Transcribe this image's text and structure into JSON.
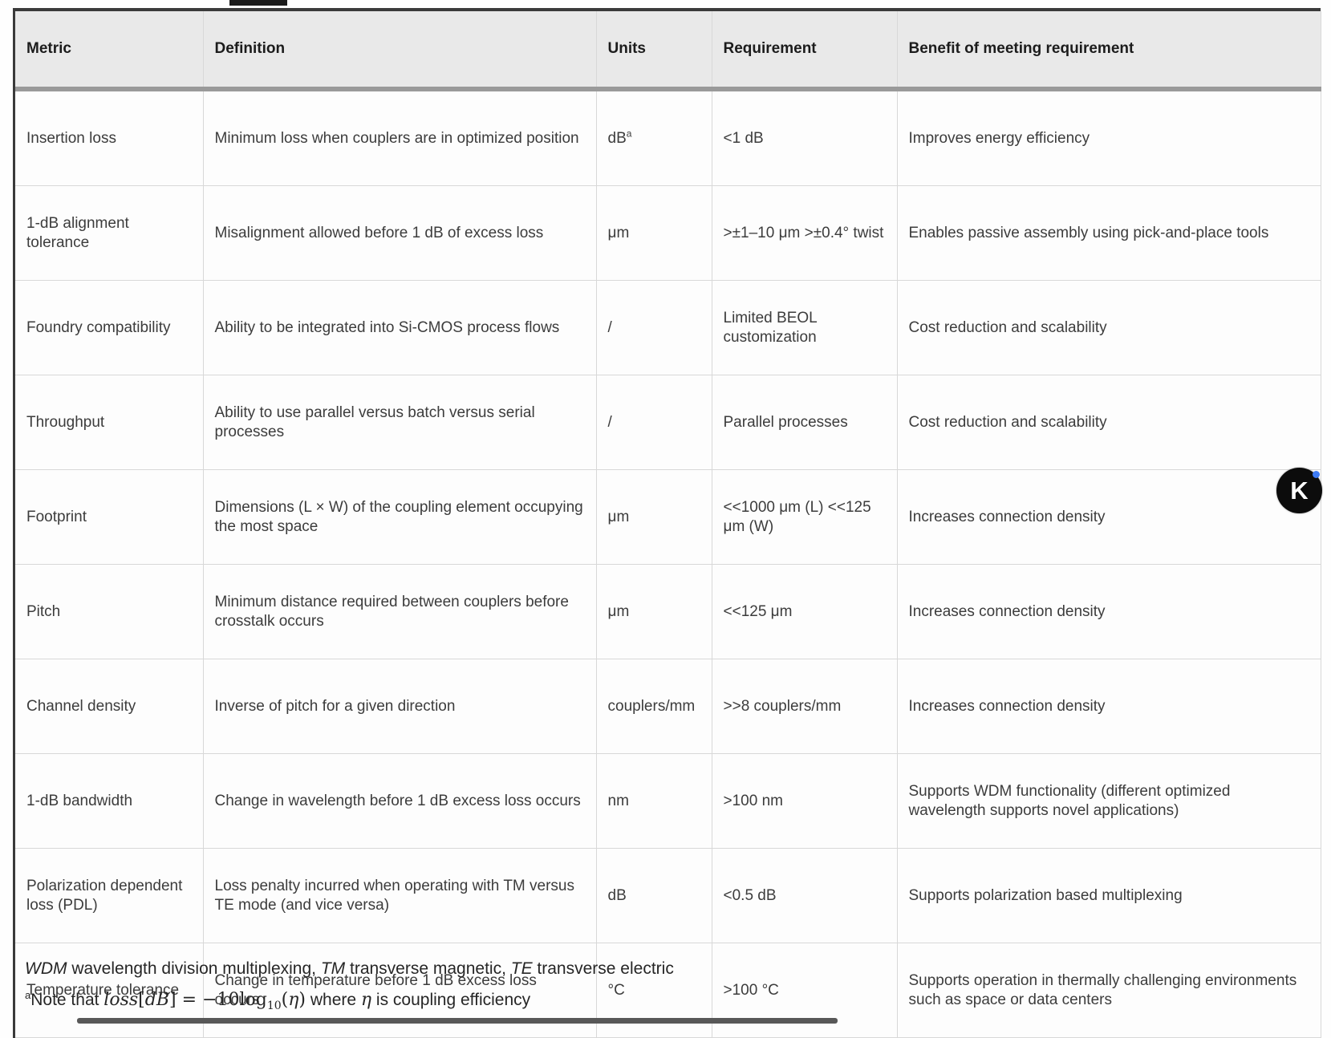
{
  "table": {
    "headers": [
      "Metric",
      "Definition",
      "Units",
      "Requirement",
      "Benefit of meeting requirement"
    ],
    "rows": [
      {
        "metric": "Insertion loss",
        "definition": "Minimum loss when couplers are in optimized position",
        "units": "dB",
        "units_sup": "a",
        "requirement": "<1 dB",
        "benefit": "Improves energy efficiency"
      },
      {
        "metric": "1-dB alignment tolerance",
        "definition": "Misalignment allowed before 1 dB of excess loss",
        "units": "μm",
        "units_sup": "",
        "requirement": ">±1–10 μm >±0.4° twist",
        "benefit": "Enables passive assembly using pick-and-place tools"
      },
      {
        "metric": "Foundry compatibility",
        "definition": "Ability to be integrated into Si-CMOS process flows",
        "units": "/",
        "units_sup": "",
        "requirement": "Limited BEOL customization",
        "benefit": "Cost reduction and scalability"
      },
      {
        "metric": "Throughput",
        "definition": "Ability to use parallel versus batch versus serial processes",
        "units": "/",
        "units_sup": "",
        "requirement": "Parallel processes",
        "benefit": "Cost reduction and scalability"
      },
      {
        "metric": "Footprint",
        "definition": "Dimensions (L × W) of the coupling element occupying the most space",
        "units": "μm",
        "units_sup": "",
        "requirement": "<<1000 μm (L) <<125 μm (W)",
        "benefit": "Increases connection density"
      },
      {
        "metric": "Pitch",
        "definition": "Minimum distance required between couplers before crosstalk occurs",
        "units": "μm",
        "units_sup": "",
        "requirement": "<<125 μm",
        "benefit": "Increases connection density"
      },
      {
        "metric": "Channel density",
        "definition": "Inverse of pitch for a given direction",
        "units": "couplers/mm",
        "units_sup": "",
        "requirement": ">>8 couplers/mm",
        "benefit": "Increases connection density"
      },
      {
        "metric": "1-dB bandwidth",
        "definition": "Change in wavelength before 1 dB excess loss occurs",
        "units": "nm",
        "units_sup": "",
        "requirement": ">100 nm",
        "benefit": "Supports WDM functionality (different optimized wavelength supports novel applications)"
      },
      {
        "metric": "Polarization dependent loss (PDL)",
        "definition": "Loss penalty incurred when operating with TM versus TE mode (and vice versa)",
        "units": "dB",
        "units_sup": "",
        "requirement": "<0.5 dB",
        "benefit": "Supports polarization based multiplexing"
      },
      {
        "metric": "Temperature tolerance",
        "definition": "Change in temperature before 1 dB excess loss occurs",
        "units": "°C",
        "units_sup": "",
        "requirement": ">100 °C",
        "benefit": "Supports operation in thermally challenging environments such as space or data centers"
      }
    ]
  },
  "footnotes": {
    "abbrev": {
      "t0": "WDM",
      "t1": " wavelength division multiplexing, ",
      "t2": "TM",
      "t3": " transverse magnetic, ",
      "t4": "TE",
      "t5": " transverse electric"
    },
    "note": {
      "sup": "a",
      "t0": "Note that ",
      "m_loss": "loss",
      "b_open": "[",
      "m_db": "dB",
      "b_mid": "] = −10log",
      "sub10": "10",
      "b_paren_open": "(",
      "m_eta": "η",
      "b_paren_close": ")",
      "t1": " where ",
      "m_eta2": "η",
      "t2": " is coupling efficiency"
    }
  },
  "watermark": {
    "letter": "K"
  },
  "colors": {
    "header_bg": "#e9e9e9",
    "thick_rule": "#9a9a9a",
    "cell_border": "#d8d8d8",
    "badge_bg": "#0c0c0c",
    "badge_dot": "#3d7bf5"
  }
}
